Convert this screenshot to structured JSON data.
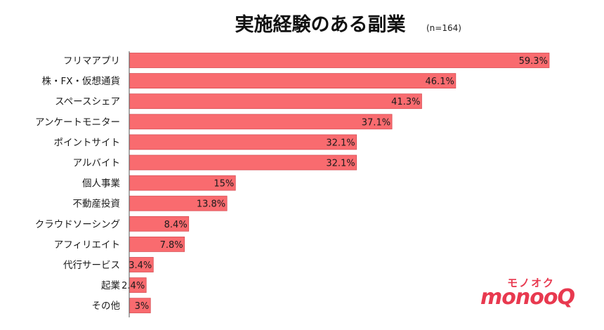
{
  "chart_data": {
    "type": "bar",
    "orientation": "horizontal",
    "title": "実施経験のある副業",
    "subtitle": "(n=164)",
    "categories": [
      "フリマアプリ",
      "株・FX・仮想通貨",
      "スペースシェア",
      "アンケートモニター",
      "ポイントサイト",
      "アルバイト",
      "個人事業",
      "不動産投資",
      "クラウドソーシング",
      "アフィリエイト",
      "代行サービス",
      "起業",
      "その他"
    ],
    "values": [
      59.3,
      46.1,
      41.3,
      37.1,
      32.1,
      32.1,
      15,
      13.8,
      8.4,
      7.8,
      3.4,
      2.4,
      3
    ],
    "value_labels": [
      "59.3%",
      "46.1%",
      "41.3%",
      "37.1%",
      "32.1%",
      "32.1%",
      "15%",
      "13.8%",
      "8.4%",
      "7.8%",
      "3.4%",
      "2.4%",
      "3%"
    ],
    "xlim": [
      0,
      60
    ],
    "grid": false,
    "legend": "none",
    "bar_color": "#f96b6f",
    "bar_edge_color": "#d84f55",
    "axis_color": "#555555"
  },
  "logo": {
    "top_text": "モノオク",
    "main_text": "monooQ",
    "color": "#e8394f"
  }
}
